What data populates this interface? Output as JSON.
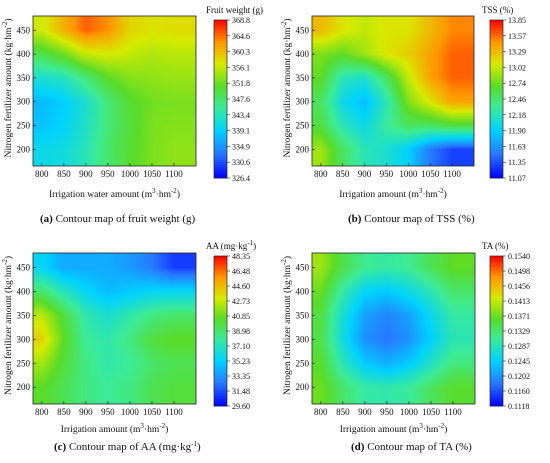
{
  "figure": {
    "panels": [
      {
        "caption_letter": "(a)",
        "caption_text": " Contour map of fruit weight (g)",
        "chart_data": {
          "type": "heatmap",
          "subtype": "contour",
          "x": [
            800,
            850,
            900,
            950,
            1000,
            1050,
            1100
          ],
          "y": [
            200,
            250,
            300,
            350,
            400,
            450
          ],
          "xlabel": "Irrigation  water amount (m³·hm⁻²)",
          "ylabel": "Nitrogen fertilizer amount (kg·hm⁻²)",
          "xlim": [
            780,
            1150
          ],
          "ylim": [
            165,
            480
          ],
          "colorbar_title": "Fruit weight (g)",
          "colorbar_ticks": [
            "368.8",
            "364.6",
            "360.3",
            "356.1",
            "351.8",
            "347.6",
            "343.4",
            "339.1",
            "334.9",
            "330.6",
            "326.4"
          ],
          "z_range": [
            326.4,
            368.8
          ],
          "z": [
            [
              340.5,
              341.0,
              343.5,
              347.5,
              350.5,
              352.5,
              353.5
            ],
            [
              338.0,
              339.5,
              342.5,
              347.0,
              350.0,
              352.5,
              353.0
            ],
            [
              337.5,
              339.0,
              342.0,
              347.0,
              350.5,
              352.0,
              352.5
            ],
            [
              342.0,
              343.0,
              347.0,
              351.0,
              353.0,
              353.5,
              354.0
            ],
            [
              349.0,
              352.0,
              356.0,
              357.0,
              356.0,
              355.0,
              355.5
            ],
            [
              356.5,
              361.0,
              365.0,
              363.0,
              358.5,
              357.5,
              358.0
            ]
          ]
        }
      },
      {
        "caption_letter": "(b)",
        "caption_text": " Contour map of TSS (%)",
        "chart_data": {
          "type": "heatmap",
          "subtype": "contour",
          "x": [
            800,
            850,
            900,
            950,
            1000,
            1050,
            1100
          ],
          "y": [
            200,
            250,
            300,
            350,
            400,
            450
          ],
          "xlabel": "Irrigation amount (m³·hm⁻²)",
          "ylabel": "Nitrogen fertilizer amount (kg·hm⁻²)",
          "xlim": [
            780,
            1150
          ],
          "ylim": [
            165,
            480
          ],
          "colorbar_title": "TSS (%)",
          "colorbar_ticks": [
            "13.85",
            "13.57",
            "13.29",
            "13.02",
            "12.74",
            "12.46",
            "12.18",
            "11.90",
            "11.63",
            "11.35",
            "11.07"
          ],
          "z_range": [
            11.07,
            13.85
          ],
          "z": [
            [
              12.9,
              12.5,
              12.2,
              12.1,
              11.9,
              11.5,
              11.3
            ],
            [
              12.6,
              12.2,
              12.0,
              12.3,
              12.5,
              12.5,
              12.6
            ],
            [
              12.5,
              12.0,
              11.8,
              12.2,
              12.8,
              13.1,
              13.4
            ],
            [
              12.7,
              12.2,
              12.1,
              12.5,
              13.0,
              13.4,
              13.6
            ],
            [
              12.8,
              12.7,
              12.9,
              13.1,
              13.2,
              13.4,
              13.6
            ],
            [
              13.3,
              13.1,
              13.0,
              13.1,
              13.1,
              13.3,
              13.5
            ]
          ]
        }
      },
      {
        "caption_letter": "(c)",
        "caption_text": " Contour map of AA (mg·kg⁻¹)",
        "chart_data": {
          "type": "heatmap",
          "subtype": "contour",
          "x": [
            800,
            850,
            900,
            950,
            1000,
            1050,
            1100
          ],
          "y": [
            200,
            250,
            300,
            350,
            400,
            450
          ],
          "xlabel": "Irrigation amount (m³·hm⁻²)",
          "ylabel": "Nitrogen fertilizer amount (kg·hm⁻²)",
          "xlim": [
            780,
            1150
          ],
          "ylim": [
            165,
            480
          ],
          "colorbar_title": "AA (mg·kg⁻¹)",
          "colorbar_ticks": [
            "48.35",
            "46.48",
            "44.60",
            "42.73",
            "40.85",
            "38.98",
            "37.10",
            "35.23",
            "33.35",
            "31.48",
            "29.60"
          ],
          "z_range": [
            29.6,
            48.35
          ],
          "z": [
            [
              40.5,
              39.5,
              38.5,
              38.0,
              38.5,
              39.5,
              40.0
            ],
            [
              42.0,
              40.0,
              38.5,
              37.5,
              38.0,
              39.0,
              39.5
            ],
            [
              44.0,
              40.5,
              38.0,
              37.5,
              38.5,
              40.0,
              40.5
            ],
            [
              42.5,
              40.0,
              37.5,
              36.5,
              37.5,
              38.5,
              39.0
            ],
            [
              39.0,
              37.0,
              35.5,
              34.5,
              35.0,
              35.5,
              35.5
            ],
            [
              35.5,
              34.0,
              34.0,
              34.0,
              33.5,
              32.5,
              31.0
            ]
          ]
        }
      },
      {
        "caption_letter": "(d)",
        "caption_text": " Contour map of TA (%)",
        "chart_data": {
          "type": "heatmap",
          "subtype": "contour",
          "x": [
            800,
            850,
            900,
            950,
            1000,
            1050,
            1100
          ],
          "y": [
            200,
            250,
            300,
            350,
            400,
            450
          ],
          "xlabel": "Irrigation amount (m³·hm⁻²)",
          "ylabel": "Nitrogen fertilizer amount (kg·hm⁻²)",
          "xlim": [
            780,
            1150
          ],
          "ylim": [
            165,
            480
          ],
          "colorbar_title": "TA (%)",
          "colorbar_ticks": [
            "0.1540",
            "0.1498",
            "0.1456",
            "0.1413",
            "0.1371",
            "0.1329",
            "0.1287",
            "0.1245",
            "0.1202",
            "0.1160",
            "0.1118"
          ],
          "z_range": [
            0.1118,
            0.154
          ],
          "z": [
            [
              0.1372,
              0.133,
              0.13,
              0.1295,
              0.1305,
              0.1335,
              0.136
            ],
            [
              0.136,
              0.129,
              0.124,
              0.122,
              0.124,
              0.128,
              0.132
            ],
            [
              0.1345,
              0.1265,
              0.12,
              0.118,
              0.12,
              0.1245,
              0.129
            ],
            [
              0.135,
              0.127,
              0.121,
              0.119,
              0.121,
              0.1255,
              0.13
            ],
            [
              0.137,
              0.13,
              0.125,
              0.124,
              0.126,
              0.129,
              0.133
            ],
            [
              0.1395,
              0.1345,
              0.131,
              0.13,
              0.131,
              0.134,
              0.1365
            ]
          ]
        }
      }
    ]
  }
}
